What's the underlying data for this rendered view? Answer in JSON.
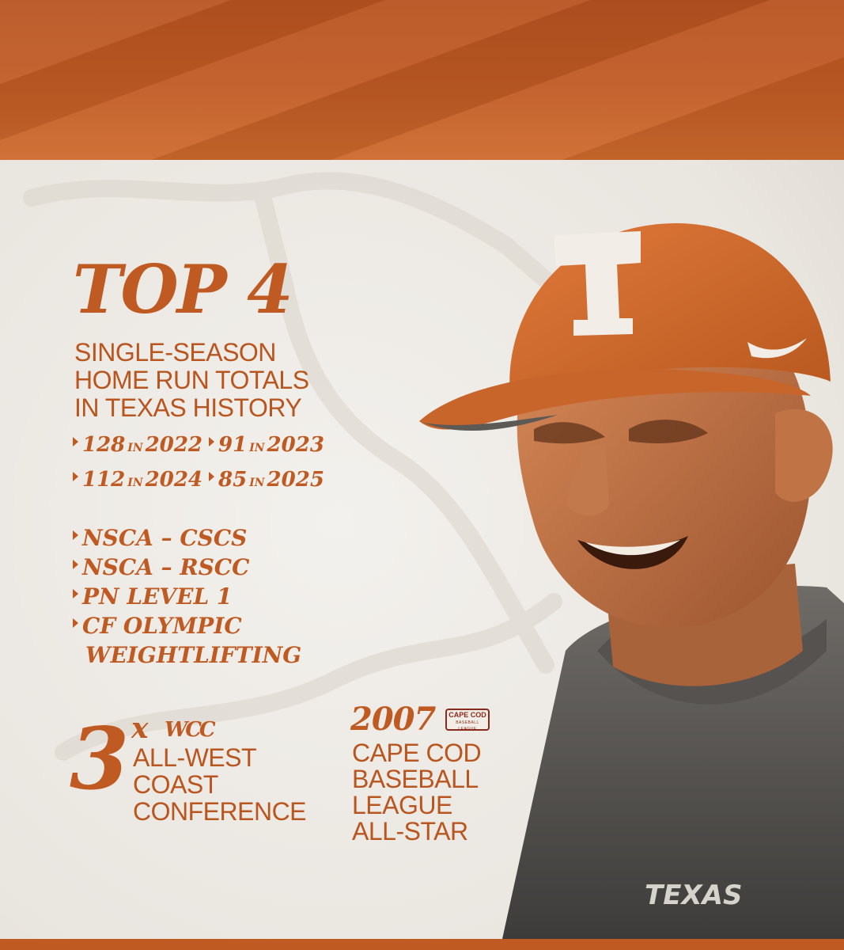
{
  "headline": {
    "title": "TOP 4",
    "subtitle_lines": [
      "SINGLE-SEASON",
      "HOME RUN TOTALS",
      "IN TEXAS HISTORY"
    ]
  },
  "home_runs": [
    {
      "count": "128",
      "connector": "IN",
      "year": "2022"
    },
    {
      "count": "91",
      "connector": "IN",
      "year": "2023"
    },
    {
      "count": "112",
      "connector": "IN",
      "year": "2024"
    },
    {
      "count": "85",
      "connector": "IN",
      "year": "2025"
    }
  ],
  "certifications": [
    {
      "lines": [
        "NSCA – CSCS"
      ]
    },
    {
      "lines": [
        "NSCA – RSCC"
      ]
    },
    {
      "lines": [
        "PN LEVEL 1"
      ]
    },
    {
      "lines": [
        "CF OLYMPIC",
        "WEIGHTLIFTING"
      ]
    }
  ],
  "wcc": {
    "number": "3",
    "multiplier": "x",
    "logo_text": "WCC",
    "lines": [
      "ALL-WEST",
      "COAST",
      "CONFERENCE"
    ]
  },
  "cape_cod": {
    "year": "2007",
    "badge_top": "CAPE COD",
    "badge_bottom": "BASEBALL LEAGUE",
    "lines": [
      "CAPE COD",
      "BASEBALL",
      "LEAGUE",
      "ALL-STAR"
    ]
  },
  "portrait": {
    "cap_letter": "T",
    "shirt_text": "TEXAS"
  },
  "colors": {
    "burnt_orange": "#bf5a22",
    "background": "#ece9e4",
    "text_orange": "#b9561f"
  },
  "icons": {
    "bullet": "triangle-bullet-icon",
    "cap_logo": "longhorn-t-icon",
    "swoosh": "swoosh-icon"
  }
}
